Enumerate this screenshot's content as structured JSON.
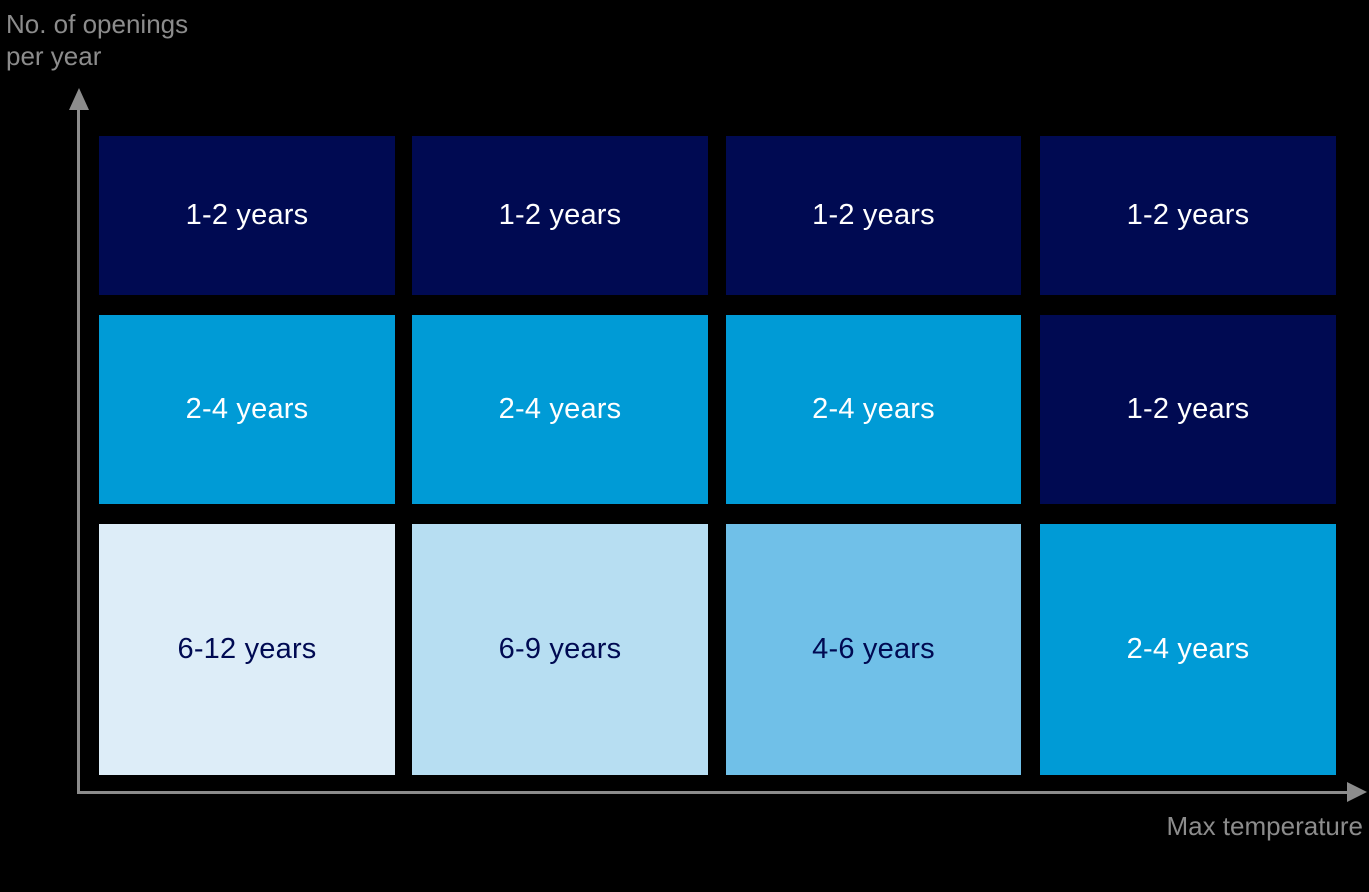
{
  "y_axis": {
    "label_line1": "No. of openings",
    "label_line2": "per year"
  },
  "x_axis": {
    "label": "Max temperature"
  },
  "colors": {
    "background": "#000000",
    "axis_and_labels": "#8c8c8c",
    "navy": "#000a52",
    "bright_blue": "#009bd6",
    "light_blue": "#70c0e8",
    "lighter_blue": "#b7def2",
    "lightest_blue": "#ddedf8",
    "white_text": "#ffffff"
  },
  "grid": {
    "rows": [
      {
        "cells": [
          {
            "label": "1-2 years",
            "bg": "#000a52",
            "fg": "#ffffff"
          },
          {
            "label": "1-2 years",
            "bg": "#000a52",
            "fg": "#ffffff"
          },
          {
            "label": "1-2 years",
            "bg": "#000a52",
            "fg": "#ffffff"
          },
          {
            "label": "1-2 years",
            "bg": "#000a52",
            "fg": "#ffffff"
          }
        ]
      },
      {
        "cells": [
          {
            "label": "2-4 years",
            "bg": "#009bd6",
            "fg": "#ffffff"
          },
          {
            "label": "2-4 years",
            "bg": "#009bd6",
            "fg": "#ffffff"
          },
          {
            "label": "2-4 years",
            "bg": "#009bd6",
            "fg": "#ffffff"
          },
          {
            "label": "1-2 years",
            "bg": "#000a52",
            "fg": "#ffffff"
          }
        ]
      },
      {
        "cells": [
          {
            "label": "6-12 years",
            "bg": "#ddedf8",
            "fg": "#000a52"
          },
          {
            "label": "6-9 years",
            "bg": "#b7def2",
            "fg": "#000a52"
          },
          {
            "label": "4-6 years",
            "bg": "#70c0e8",
            "fg": "#000a52"
          },
          {
            "label": "2-4 years",
            "bg": "#009bd6",
            "fg": "#ffffff"
          }
        ]
      }
    ]
  },
  "chart_data": {
    "type": "heatmap",
    "title": "",
    "xlabel": "Max temperature",
    "ylabel": "No. of openings per year",
    "x_ticks": [],
    "y_ticks": [],
    "axes_note": "No numeric tick labels shown; x increases rightward, y increases upward (arrowed axes).",
    "grid_rows_top_to_bottom": [
      [
        "1-2 years",
        "1-2 years",
        "1-2 years",
        "1-2 years"
      ],
      [
        "2-4 years",
        "2-4 years",
        "2-4 years",
        "1-2 years"
      ],
      [
        "6-12 years",
        "6-9 years",
        "4-6 years",
        "2-4 years"
      ]
    ],
    "cell_color_by_label": {
      "1-2 years": "#000a52",
      "2-4 years": "#009bd6",
      "4-6 years": "#70c0e8",
      "6-9 years": "#b7def2",
      "6-12 years": "#ddedf8"
    }
  }
}
